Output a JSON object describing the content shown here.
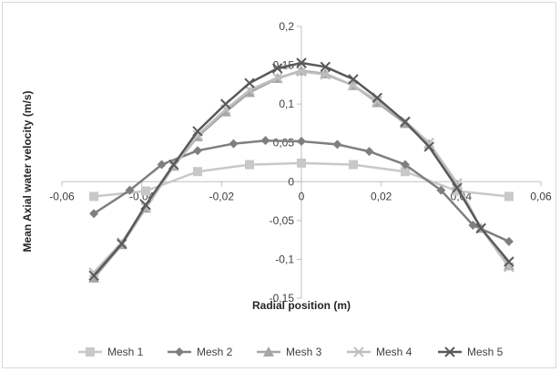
{
  "chart_data": {
    "type": "line",
    "title": "",
    "xlabel": "Radial position (m)",
    "ylabel": "Mean Axial water velocity (m/s)",
    "xlim": [
      -0.06,
      0.06
    ],
    "ylim": [
      -0.15,
      0.2
    ],
    "xticks": [
      -0.06,
      -0.04,
      -0.02,
      0,
      0.02,
      0.04,
      0.06
    ],
    "yticks": [
      -0.15,
      -0.1,
      -0.05,
      0,
      0.05,
      0.1,
      0.15,
      0.2
    ],
    "xtick_labels": [
      "-0,06",
      "-0,04",
      "-0,02",
      "0",
      "0,02",
      "0,04",
      "0,06"
    ],
    "ytick_labels": [
      "-0,15",
      "-0,1",
      "-0,05",
      "0",
      "0,05",
      "0,1",
      "0,15",
      "0,2"
    ],
    "grid": false,
    "legend_position": "bottom",
    "series": [
      {
        "name": "Mesh 1",
        "color": "#c8c8c8",
        "marker": "square",
        "x": [
          -0.052,
          -0.039,
          -0.026,
          -0.013,
          0.0,
          0.013,
          0.026,
          0.039,
          0.052
        ],
        "y": [
          -0.019,
          -0.012,
          0.013,
          0.022,
          0.024,
          0.022,
          0.013,
          -0.012,
          -0.019
        ]
      },
      {
        "name": "Mesh 2",
        "color": "#7f7f7f",
        "marker": "diamond",
        "x": [
          -0.052,
          -0.043,
          -0.035,
          -0.026,
          -0.017,
          -0.009,
          0.0,
          0.009,
          0.017,
          0.026,
          0.035,
          0.043,
          0.052
        ],
        "y": [
          -0.041,
          -0.011,
          0.022,
          0.04,
          0.049,
          0.053,
          0.052,
          0.048,
          0.039,
          0.022,
          -0.011,
          -0.056,
          -0.077
        ]
      },
      {
        "name": "Mesh 3",
        "color": "#a6a6a6",
        "marker": "triangle",
        "x": [
          -0.052,
          -0.045,
          -0.039,
          -0.032,
          -0.026,
          -0.019,
          -0.013,
          -0.006,
          0.0,
          0.006,
          0.013,
          0.019,
          0.026,
          0.032,
          0.039,
          0.045,
          0.052
        ],
        "y": [
          -0.124,
          -0.081,
          -0.034,
          0.02,
          0.058,
          0.09,
          0.115,
          0.133,
          0.143,
          0.139,
          0.124,
          0.102,
          0.075,
          0.048,
          -0.004,
          -0.06,
          -0.108
        ]
      },
      {
        "name": "Mesh 4",
        "color": "#bfbfbf",
        "marker": "x",
        "x": [
          -0.052,
          -0.045,
          -0.039,
          -0.032,
          -0.026,
          -0.019,
          -0.013,
          -0.006,
          0.0,
          0.006,
          0.013,
          0.019,
          0.026,
          0.032,
          0.039,
          0.045,
          0.052
        ],
        "y": [
          -0.117,
          -0.078,
          -0.033,
          0.02,
          0.06,
          0.093,
          0.118,
          0.134,
          0.142,
          0.138,
          0.124,
          0.104,
          0.078,
          0.05,
          -0.002,
          -0.06,
          -0.11
        ]
      },
      {
        "name": "Mesh 5",
        "color": "#595959",
        "marker": "x",
        "x": [
          -0.052,
          -0.045,
          -0.039,
          -0.032,
          -0.026,
          -0.019,
          -0.013,
          -0.006,
          0.0,
          0.006,
          0.013,
          0.019,
          0.026,
          0.032,
          0.039,
          0.045,
          0.052
        ],
        "y": [
          -0.121,
          -0.08,
          -0.03,
          0.022,
          0.065,
          0.1,
          0.127,
          0.146,
          0.153,
          0.148,
          0.132,
          0.108,
          0.077,
          0.045,
          -0.008,
          -0.06,
          -0.103
        ]
      }
    ]
  }
}
